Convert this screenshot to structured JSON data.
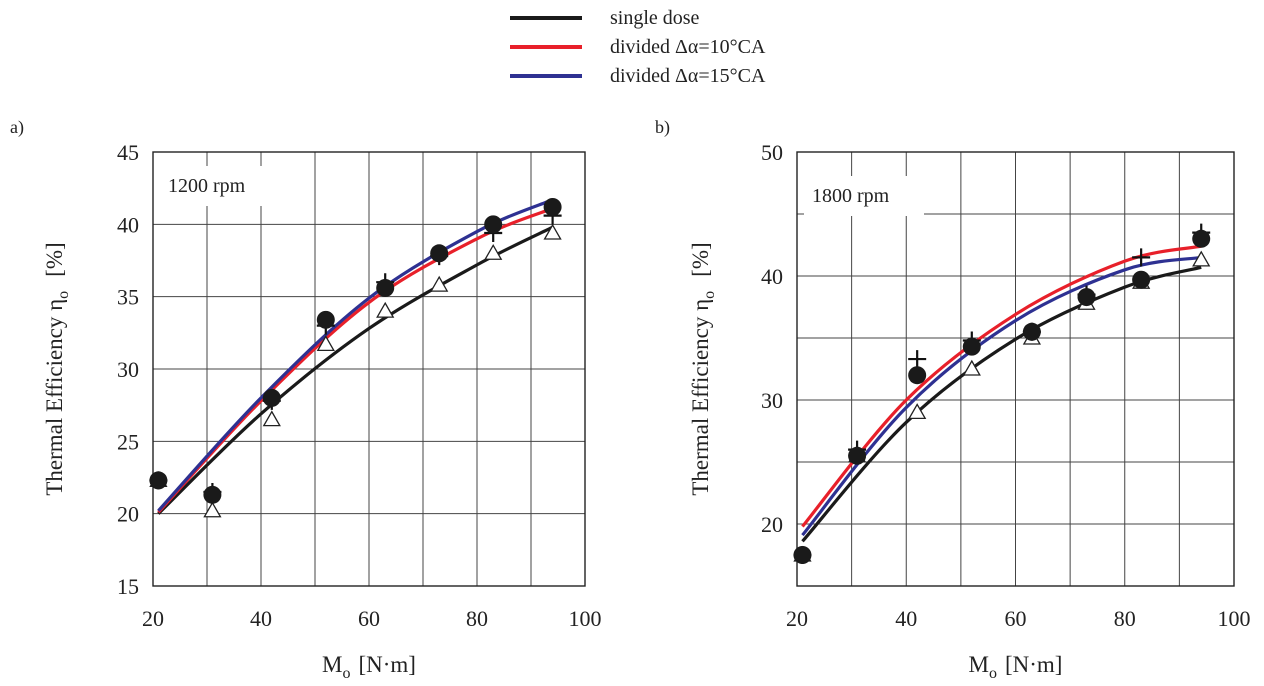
{
  "legend": {
    "items": [
      {
        "label": "single dose",
        "color": "#1a1a1a"
      },
      {
        "label": "divided Δα=10°CA",
        "color": "#e8202a"
      },
      {
        "label": "divided Δα=15°CA",
        "color": "#2e3192"
      }
    ]
  },
  "chart_data": [
    {
      "type": "line",
      "panel_label": "a)",
      "annotation": "1200 rpm",
      "ylabel": "Thermal Efficiency η",
      "ylabel_sub": "o",
      "ylabel_unit": "[%]",
      "xlabel": "M",
      "xlabel_sub": "o",
      "xlabel_unit": "[N·m]",
      "xlim": [
        20,
        100
      ],
      "ylim": [
        15,
        45
      ],
      "xticks": [
        20,
        40,
        60,
        80,
        100
      ],
      "yticks": [
        15,
        20,
        25,
        30,
        35,
        40,
        45
      ],
      "grid": true,
      "series": [
        {
          "name": "single dose",
          "color": "#1a1a1a",
          "marker": "triangle",
          "x": [
            21,
            31,
            42,
            52,
            63,
            73,
            83,
            94
          ],
          "values": [
            22.3,
            20.2,
            26.5,
            31.7,
            34.0,
            35.8,
            38.0,
            39.4
          ],
          "fit": [
            [
              21,
              20.0
            ],
            [
              40,
              26.9
            ],
            [
              60,
              32.8
            ],
            [
              80,
              37.2
            ],
            [
              94,
              39.8
            ]
          ]
        },
        {
          "name": "divided Δα=10°CA",
          "color": "#e8202a",
          "marker": "plus",
          "x": [
            21,
            31,
            42,
            52,
            63,
            73,
            83,
            94
          ],
          "values": [
            22.3,
            21.5,
            27.8,
            33.0,
            36.0,
            37.8,
            39.4,
            40.6
          ],
          "fit": [
            [
              21,
              20.1
            ],
            [
              40,
              27.8
            ],
            [
              60,
              34.6
            ],
            [
              80,
              39.0
            ],
            [
              94,
              41.1
            ]
          ]
        },
        {
          "name": "divided Δα=15°CA",
          "color": "#2e3192",
          "marker": "circle",
          "x": [
            21,
            31,
            42,
            52,
            63,
            73,
            83,
            94
          ],
          "values": [
            22.3,
            21.3,
            28.0,
            33.4,
            35.6,
            38.0,
            40.0,
            41.2
          ],
          "fit": [
            [
              21,
              20.2
            ],
            [
              40,
              28.0
            ],
            [
              60,
              34.9
            ],
            [
              80,
              39.5
            ],
            [
              94,
              41.7
            ]
          ]
        }
      ]
    },
    {
      "type": "line",
      "panel_label": "b)",
      "annotation": "1800 rpm",
      "ylabel": "Thermal Efficiency η",
      "ylabel_sub": "o",
      "ylabel_unit": "[%]",
      "xlabel": "M",
      "xlabel_sub": "o",
      "xlabel_unit": "[N·m]",
      "xlim": [
        20,
        100
      ],
      "ylim": [
        15,
        50
      ],
      "xticks": [
        20,
        40,
        60,
        80,
        100
      ],
      "yticks": [
        20,
        30,
        40,
        50
      ],
      "grid": true,
      "series": [
        {
          "name": "single dose",
          "color": "#1a1a1a",
          "marker": "triangle",
          "x": [
            21,
            31,
            42,
            52,
            63,
            73,
            83,
            94
          ],
          "values": [
            17.5,
            25.5,
            29.0,
            32.5,
            35.0,
            37.8,
            39.5,
            41.3
          ],
          "fit": [
            [
              21,
              18.6
            ],
            [
              40,
              28.2
            ],
            [
              60,
              34.9
            ],
            [
              80,
              39.1
            ],
            [
              94,
              40.7
            ]
          ]
        },
        {
          "name": "divided Δα=10°CA",
          "color": "#e8202a",
          "marker": "plus",
          "x": [
            21,
            31,
            42,
            52,
            63,
            73,
            83,
            94
          ],
          "values": [
            17.5,
            26.0,
            33.3,
            34.8,
            35.5,
            38.5,
            41.5,
            43.5
          ],
          "fit": [
            [
              21,
              19.8
            ],
            [
              40,
              30.0
            ],
            [
              60,
              36.9
            ],
            [
              80,
              41.2
            ],
            [
              94,
              42.4
            ]
          ]
        },
        {
          "name": "divided Δα=15°CA",
          "color": "#2e3192",
          "marker": "circle",
          "x": [
            21,
            31,
            42,
            52,
            63,
            73,
            83,
            94
          ],
          "values": [
            17.5,
            25.5,
            32.0,
            34.3,
            35.5,
            38.3,
            39.7,
            43.0
          ],
          "fit": [
            [
              21,
              19.1
            ],
            [
              40,
              29.4
            ],
            [
              60,
              36.4
            ],
            [
              80,
              40.5
            ],
            [
              94,
              41.5
            ]
          ]
        }
      ]
    }
  ]
}
